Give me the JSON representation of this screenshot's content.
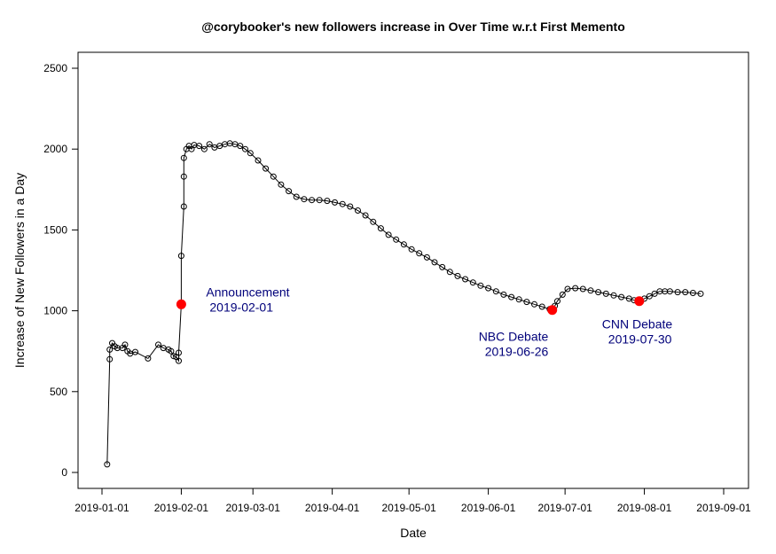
{
  "chart_data": {
    "type": "line",
    "title": "@corybooker's new followers increase in Over Time w.r.t First Memento",
    "xlabel": "Date",
    "ylabel": "Increase of New Followers in a Day",
    "xlim": [
      "2019-01-01",
      "2019-09-01"
    ],
    "ylim": [
      0,
      2500
    ],
    "x_ticks": [
      "2019-01-01",
      "2019-02-01",
      "2019-03-01",
      "2019-04-01",
      "2019-05-01",
      "2019-06-01",
      "2019-07-01",
      "2019-08-01",
      "2019-09-01"
    ],
    "y_ticks": [
      0,
      500,
      1000,
      1500,
      2000,
      2500
    ],
    "grid": false,
    "colors": {
      "line": "#000000",
      "marker": "#000000",
      "highlight": "#ff0000",
      "annotation": "#00007a"
    },
    "series": [
      {
        "points": [
          [
            "2019-01-03",
            50
          ],
          [
            "2019-01-04",
            700
          ],
          [
            "2019-01-04",
            760
          ],
          [
            "2019-01-05",
            800
          ],
          [
            "2019-01-06",
            780
          ],
          [
            "2019-01-07",
            770
          ],
          [
            "2019-01-09",
            770
          ],
          [
            "2019-01-10",
            790
          ],
          [
            "2019-01-11",
            750
          ],
          [
            "2019-01-12",
            735
          ],
          [
            "2019-01-14",
            745
          ],
          [
            "2019-01-19",
            705
          ],
          [
            "2019-01-23",
            790
          ],
          [
            "2019-01-25",
            770
          ],
          [
            "2019-01-27",
            760
          ],
          [
            "2019-01-28",
            750
          ],
          [
            "2019-01-29",
            720
          ],
          [
            "2019-01-30",
            715
          ],
          [
            "2019-01-31",
            690
          ],
          [
            "2019-01-31",
            740
          ],
          [
            "2019-02-01",
            1040
          ],
          [
            "2019-02-01",
            1340
          ],
          [
            "2019-02-02",
            1645
          ],
          [
            "2019-02-02",
            1830
          ],
          [
            "2019-02-02",
            1945
          ],
          [
            "2019-02-03",
            2000
          ],
          [
            "2019-02-04",
            2020
          ],
          [
            "2019-02-05",
            2000
          ],
          [
            "2019-02-06",
            2025
          ],
          [
            "2019-02-08",
            2020
          ],
          [
            "2019-02-10",
            2000
          ],
          [
            "2019-02-12",
            2030
          ],
          [
            "2019-02-14",
            2010
          ],
          [
            "2019-02-16",
            2020
          ],
          [
            "2019-02-18",
            2030
          ],
          [
            "2019-02-20",
            2035
          ],
          [
            "2019-02-22",
            2030
          ],
          [
            "2019-02-24",
            2020
          ],
          [
            "2019-02-26",
            2000
          ],
          [
            "2019-02-28",
            1975
          ],
          [
            "2019-03-03",
            1930
          ],
          [
            "2019-03-06",
            1880
          ],
          [
            "2019-03-09",
            1830
          ],
          [
            "2019-03-12",
            1780
          ],
          [
            "2019-03-15",
            1740
          ],
          [
            "2019-03-18",
            1705
          ],
          [
            "2019-03-21",
            1690
          ],
          [
            "2019-03-24",
            1685
          ],
          [
            "2019-03-27",
            1685
          ],
          [
            "2019-03-30",
            1680
          ],
          [
            "2019-04-02",
            1670
          ],
          [
            "2019-04-05",
            1660
          ],
          [
            "2019-04-08",
            1645
          ],
          [
            "2019-04-11",
            1620
          ],
          [
            "2019-04-14",
            1590
          ],
          [
            "2019-04-17",
            1550
          ],
          [
            "2019-04-20",
            1510
          ],
          [
            "2019-04-23",
            1470
          ],
          [
            "2019-04-26",
            1440
          ],
          [
            "2019-04-29",
            1410
          ],
          [
            "2019-05-02",
            1380
          ],
          [
            "2019-05-05",
            1355
          ],
          [
            "2019-05-08",
            1330
          ],
          [
            "2019-05-11",
            1300
          ],
          [
            "2019-05-14",
            1270
          ],
          [
            "2019-05-17",
            1240
          ],
          [
            "2019-05-20",
            1215
          ],
          [
            "2019-05-23",
            1195
          ],
          [
            "2019-05-26",
            1175
          ],
          [
            "2019-05-29",
            1155
          ],
          [
            "2019-06-01",
            1140
          ],
          [
            "2019-06-04",
            1120
          ],
          [
            "2019-06-07",
            1100
          ],
          [
            "2019-06-10",
            1085
          ],
          [
            "2019-06-13",
            1070
          ],
          [
            "2019-06-16",
            1055
          ],
          [
            "2019-06-19",
            1040
          ],
          [
            "2019-06-22",
            1025
          ],
          [
            "2019-06-25",
            1010
          ],
          [
            "2019-06-26",
            1005
          ],
          [
            "2019-06-27",
            1030
          ],
          [
            "2019-06-28",
            1060
          ],
          [
            "2019-06-30",
            1100
          ],
          [
            "2019-07-02",
            1135
          ],
          [
            "2019-07-05",
            1140
          ],
          [
            "2019-07-08",
            1135
          ],
          [
            "2019-07-11",
            1125
          ],
          [
            "2019-07-14",
            1115
          ],
          [
            "2019-07-17",
            1105
          ],
          [
            "2019-07-20",
            1095
          ],
          [
            "2019-07-23",
            1085
          ],
          [
            "2019-07-26",
            1075
          ],
          [
            "2019-07-28",
            1065
          ],
          [
            "2019-07-30",
            1060
          ],
          [
            "2019-08-01",
            1075
          ],
          [
            "2019-08-03",
            1090
          ],
          [
            "2019-08-05",
            1105
          ],
          [
            "2019-08-07",
            1120
          ],
          [
            "2019-08-09",
            1120
          ],
          [
            "2019-08-11",
            1120
          ],
          [
            "2019-08-14",
            1115
          ],
          [
            "2019-08-17",
            1115
          ],
          [
            "2019-08-20",
            1110
          ],
          [
            "2019-08-23",
            1105
          ]
        ]
      }
    ],
    "highlights": [
      {
        "date": "2019-02-01",
        "value": 1040,
        "label_line1": "Announcement",
        "label_line2": " 2019-02-01",
        "position": "right"
      },
      {
        "date": "2019-06-26",
        "value": 1005,
        "label_line1": "NBC Debate",
        "label_line2": "2019-06-26",
        "position": "left"
      },
      {
        "date": "2019-07-30",
        "value": 1060,
        "label_line1": "CNN Debate",
        "label_line2": "2019-07-30",
        "position": "above-left"
      }
    ]
  }
}
